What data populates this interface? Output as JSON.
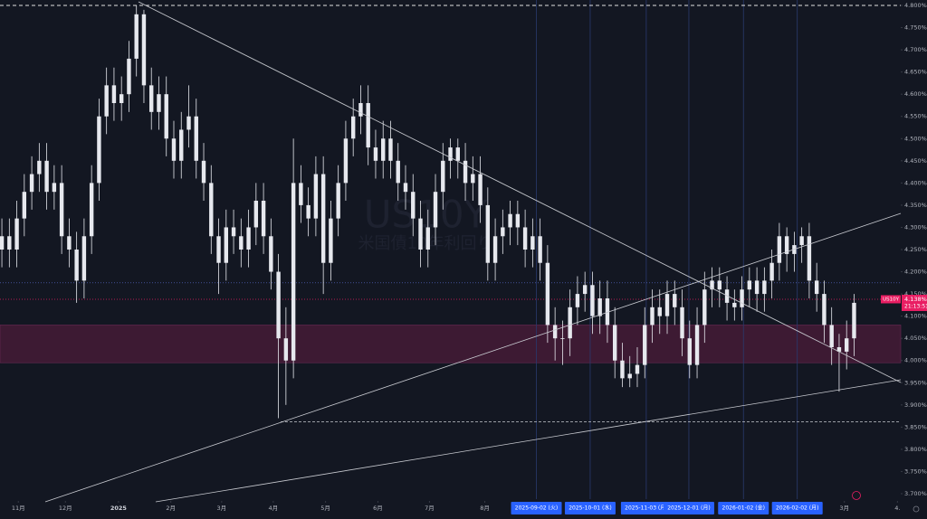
{
  "chart_data": {
    "type": "candlestick",
    "symbol": "US10Y",
    "watermark": [
      "US10Y",
      "米国債10年利回り"
    ],
    "color": "#e6e8ee",
    "open": [
      4.25,
      4.28,
      4.25,
      4.32,
      4.38,
      4.42,
      4.45,
      4.38,
      4.4,
      4.28,
      4.25,
      4.18,
      4.28,
      4.4,
      4.55,
      4.62,
      4.58,
      4.6,
      4.68,
      4.78,
      4.62,
      4.56,
      4.6,
      4.5,
      4.45,
      4.52,
      4.55,
      4.45,
      4.4,
      4.28,
      4.22,
      4.3,
      4.28,
      4.25,
      4.3,
      4.36,
      4.28,
      4.2,
      4.05,
      4.0,
      4.4,
      4.35,
      4.32,
      4.42,
      4.22,
      4.32,
      4.4,
      4.5,
      4.55,
      4.58,
      4.48,
      4.45,
      4.5,
      4.45,
      4.4,
      4.38,
      4.32,
      4.25,
      4.3,
      4.38,
      4.45,
      4.48,
      4.45,
      4.4,
      4.42,
      4.35,
      4.22,
      4.28,
      4.3,
      4.33,
      4.3,
      4.25,
      4.28,
      4.22,
      4.08,
      4.05,
      4.05,
      4.12,
      4.15,
      4.17,
      4.1,
      4.14,
      4.08,
      4.0,
      3.96,
      3.97,
      3.99,
      4.08,
      4.12,
      4.1,
      4.15,
      4.12,
      4.05,
      3.99,
      4.08,
      4.16,
      4.18,
      4.16,
      4.13,
      4.12,
      4.16,
      4.18,
      4.15,
      4.18,
      4.22,
      4.28,
      4.24,
      4.26,
      4.28,
      4.18,
      4.15,
      4.08,
      4.03,
      4.02,
      4.05
    ],
    "high": [
      4.32,
      4.32,
      4.36,
      4.42,
      4.46,
      4.49,
      4.49,
      4.44,
      4.44,
      4.32,
      4.29,
      4.32,
      4.44,
      4.59,
      4.66,
      4.66,
      4.64,
      4.72,
      4.8,
      4.79,
      4.66,
      4.64,
      4.64,
      4.54,
      4.56,
      4.62,
      4.59,
      4.49,
      4.44,
      4.32,
      4.34,
      4.34,
      4.32,
      4.34,
      4.4,
      4.4,
      4.32,
      4.24,
      4.12,
      4.5,
      4.44,
      4.39,
      4.46,
      4.46,
      4.36,
      4.44,
      4.54,
      4.59,
      4.62,
      4.62,
      4.52,
      4.54,
      4.54,
      4.49,
      4.44,
      4.42,
      4.36,
      4.34,
      4.42,
      4.49,
      4.5,
      4.5,
      4.49,
      4.46,
      4.46,
      4.39,
      4.32,
      4.34,
      4.36,
      4.36,
      4.34,
      4.32,
      4.32,
      4.26,
      4.12,
      4.09,
      4.16,
      4.19,
      4.2,
      4.2,
      4.18,
      4.18,
      4.12,
      4.04,
      4.01,
      4.03,
      4.12,
      4.16,
      4.16,
      4.18,
      4.18,
      4.16,
      4.09,
      4.12,
      4.2,
      4.21,
      4.21,
      4.19,
      4.16,
      4.19,
      4.21,
      4.21,
      4.21,
      4.25,
      4.31,
      4.3,
      4.29,
      4.3,
      4.31,
      4.22,
      4.18,
      4.12,
      4.06,
      4.09,
      4.15
    ],
    "low": [
      4.21,
      4.21,
      4.21,
      4.28,
      4.34,
      4.38,
      4.34,
      4.34,
      4.24,
      4.21,
      4.13,
      4.14,
      4.24,
      4.36,
      4.51,
      4.54,
      4.54,
      4.56,
      4.64,
      4.58,
      4.52,
      4.52,
      4.46,
      4.41,
      4.41,
      4.48,
      4.41,
      4.36,
      4.24,
      4.15,
      4.18,
      4.24,
      4.21,
      4.21,
      4.26,
      4.24,
      4.16,
      3.87,
      3.9,
      3.96,
      4.31,
      4.28,
      4.28,
      4.15,
      4.18,
      4.28,
      4.36,
      4.46,
      4.51,
      4.44,
      4.41,
      4.41,
      4.41,
      4.36,
      4.34,
      4.28,
      4.21,
      4.21,
      4.26,
      4.34,
      4.41,
      4.41,
      4.36,
      4.36,
      4.31,
      4.18,
      4.18,
      4.24,
      4.26,
      4.26,
      4.21,
      4.21,
      4.18,
      4.04,
      4.0,
      3.99,
      4.01,
      4.08,
      4.11,
      4.06,
      4.06,
      4.04,
      3.96,
      3.94,
      3.94,
      3.94,
      3.96,
      4.04,
      4.06,
      4.06,
      4.08,
      4.01,
      3.96,
      3.96,
      4.04,
      4.12,
      4.12,
      4.09,
      4.09,
      4.09,
      4.12,
      4.11,
      4.11,
      4.14,
      4.18,
      4.2,
      4.2,
      4.22,
      4.14,
      4.11,
      4.04,
      3.99,
      3.93,
      3.98,
      4.01
    ],
    "close": [
      4.28,
      4.25,
      4.32,
      4.38,
      4.42,
      4.45,
      4.38,
      4.4,
      4.28,
      4.25,
      4.18,
      4.28,
      4.4,
      4.55,
      4.62,
      4.58,
      4.6,
      4.68,
      4.78,
      4.62,
      4.56,
      4.6,
      4.5,
      4.45,
      4.52,
      4.55,
      4.45,
      4.4,
      4.28,
      4.22,
      4.3,
      4.28,
      4.25,
      4.3,
      4.36,
      4.28,
      4.2,
      4.05,
      4.0,
      4.4,
      4.35,
      4.32,
      4.42,
      4.22,
      4.32,
      4.4,
      4.5,
      4.55,
      4.58,
      4.48,
      4.45,
      4.5,
      4.45,
      4.4,
      4.38,
      4.32,
      4.25,
      4.3,
      4.38,
      4.45,
      4.48,
      4.45,
      4.4,
      4.42,
      4.35,
      4.22,
      4.28,
      4.3,
      4.33,
      4.3,
      4.25,
      4.28,
      4.22,
      4.08,
      4.05,
      4.05,
      4.12,
      4.15,
      4.17,
      4.1,
      4.14,
      4.08,
      4.0,
      3.96,
      3.97,
      3.99,
      4.08,
      4.12,
      4.1,
      4.15,
      4.12,
      4.05,
      3.99,
      4.08,
      4.16,
      4.18,
      4.16,
      4.13,
      4.12,
      4.16,
      4.18,
      4.15,
      4.18,
      4.22,
      4.28,
      4.24,
      4.26,
      4.28,
      4.18,
      4.15,
      4.08,
      4.03,
      4.02,
      4.05,
      4.13
    ],
    "xlim": [
      -0.25,
      120
    ],
    "xticks": [
      {
        "value": 2.2,
        "label": "11月"
      },
      {
        "value": 8.5,
        "label": "12月"
      },
      15.6,
      {
        "value": 22.6,
        "label": "2月"
      },
      {
        "value": 29.4,
        "label": "3月"
      },
      {
        "value": 36.3,
        "label": "4月"
      },
      {
        "value": 43.3,
        "label": "5月"
      },
      {
        "value": 50.3,
        "label": "6月"
      },
      {
        "value": 57.2,
        "label": "7月"
      },
      {
        "value": 64.6,
        "label": "8月"
      },
      {
        "value": 112.7,
        "label": "3月"
      },
      {
        "value": 119.8,
        "label": "4."
      }
    ],
    "xtick_labels_override": {
      "2": "2025"
    },
    "marked_dates": [
      {
        "value": 71.5,
        "label": "2025-09-02 (火)"
      },
      {
        "value": 78.7,
        "label": "2025-10-01 (水)"
      },
      {
        "value": 86.2,
        "label": "2025-11-03 (月)"
      },
      {
        "value": 91.9,
        "label": "2025-12-01 (月)"
      },
      {
        "value": 99.2,
        "label": "2026-01-02 (金)"
      },
      {
        "value": 106.4,
        "label": "2026-02-02 (月)"
      }
    ],
    "ylim": [
      3.7,
      4.8
    ],
    "yticks": [
      {
        "value": 4.8,
        "label": "4.800%"
      },
      {
        "value": 4.75,
        "label": "4.750%"
      },
      {
        "value": 4.7,
        "label": "4.700%"
      },
      {
        "value": 4.65,
        "label": "4.650%"
      },
      {
        "value": 4.6,
        "label": "4.600%"
      },
      {
        "value": 4.55,
        "label": "4.550%"
      },
      {
        "value": 4.5,
        "label": "4.500%"
      },
      {
        "value": 4.45,
        "label": "4.450%"
      },
      {
        "value": 4.4,
        "label": "4.400%"
      },
      {
        "value": 4.35,
        "label": "4.350%"
      },
      {
        "value": 4.3,
        "label": "4.300%"
      },
      {
        "value": 4.25,
        "label": "4.250%"
      },
      {
        "value": 4.2,
        "label": "4.200%"
      },
      {
        "value": 4.15,
        "label": "4.150%"
      },
      {
        "value": 4.1,
        "label": "4.100%"
      },
      {
        "value": 4.05,
        "label": "4.050%"
      },
      {
        "value": 4.0,
        "label": "4.000%"
      },
      {
        "value": 3.95,
        "label": "3.950%"
      },
      {
        "value": 3.9,
        "label": "3.900%"
      },
      {
        "value": 3.85,
        "label": "3.850%"
      },
      {
        "value": 3.8,
        "label": "3.800%"
      },
      {
        "value": 3.75,
        "label": "3.750%"
      },
      {
        "value": 3.7,
        "label": "3.700%"
      }
    ],
    "zone": [
      3.995,
      4.08
    ],
    "level_lines": [
      4.8,
      3.862
    ],
    "blue_level": 4.175,
    "last_price": {
      "value": 4.138,
      "label": "4.138%"
    },
    "countdown": "21:13:51"
  }
}
